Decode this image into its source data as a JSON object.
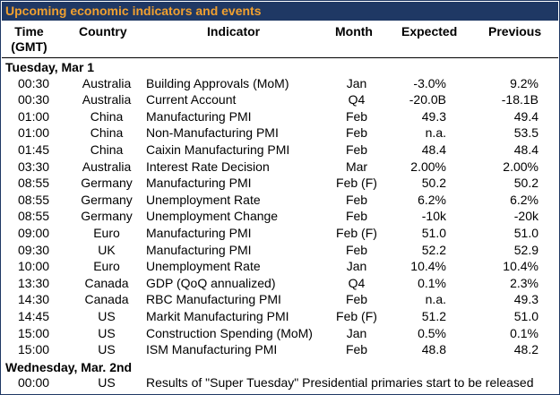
{
  "title": "Upcoming economic indicators and events",
  "headers": {
    "time_line1": "Time",
    "time_line2": "(GMT)",
    "country": "Country",
    "indicator": "Indicator",
    "month": "Month",
    "expected": "Expected",
    "previous": "Previous"
  },
  "sections": [
    {
      "label": "Tuesday, Mar 1",
      "rows": [
        {
          "time": "00:30",
          "country": "Australia",
          "indicator": "Building Approvals (MoM)",
          "month": "Jan",
          "expected": "-3.0%",
          "previous": "9.2%"
        },
        {
          "time": "00:30",
          "country": "Australia",
          "indicator": "Current Account",
          "month": "Q4",
          "expected": "-20.0B",
          "previous": "-18.1B"
        },
        {
          "time": "01:00",
          "country": "China",
          "indicator": "Manufacturing PMI",
          "month": "Feb",
          "expected": "49.3",
          "previous": "49.4"
        },
        {
          "time": "01:00",
          "country": "China",
          "indicator": "Non-Manufacturing PMI",
          "month": "Feb",
          "expected": "n.a.",
          "previous": "53.5"
        },
        {
          "time": "01:45",
          "country": "China",
          "indicator": "Caixin Manufacturing PMI",
          "month": "Feb",
          "expected": "48.4",
          "previous": "48.4"
        },
        {
          "time": "03:30",
          "country": "Australia",
          "indicator": "Interest Rate Decision",
          "month": "Mar",
          "expected": "2.00%",
          "previous": "2.00%"
        },
        {
          "time": "08:55",
          "country": "Germany",
          "indicator": "Manufacturing PMI",
          "month": "Feb (F)",
          "expected": "50.2",
          "previous": "50.2"
        },
        {
          "time": "08:55",
          "country": "Germany",
          "indicator": "Unemployment Rate",
          "month": "Feb",
          "expected": "6.2%",
          "previous": "6.2%"
        },
        {
          "time": "08:55",
          "country": "Germany",
          "indicator": "Unemployment Change",
          "month": "Feb",
          "expected": "-10k",
          "previous": "-20k"
        },
        {
          "time": "09:00",
          "country": "Euro",
          "indicator": "Manufacturing PMI",
          "month": "Feb (F)",
          "expected": "51.0",
          "previous": "51.0"
        },
        {
          "time": "09:30",
          "country": "UK",
          "indicator": "Manufacturing PMI",
          "month": "Feb",
          "expected": "52.2",
          "previous": "52.9"
        },
        {
          "time": "10:00",
          "country": "Euro",
          "indicator": "Unemployment Rate",
          "month": "Jan",
          "expected": "10.4%",
          "previous": "10.4%"
        },
        {
          "time": "13:30",
          "country": "Canada",
          "indicator": "GDP (QoQ annualized)",
          "month": "Q4",
          "expected": "0.1%",
          "previous": "2.3%"
        },
        {
          "time": "14:30",
          "country": "Canada",
          "indicator": "RBC Manufacturing PMI",
          "month": "Feb",
          "expected": "n.a.",
          "previous": "49.3"
        },
        {
          "time": "14:45",
          "country": "US",
          "indicator": "Markit Manufacturing PMI",
          "month": "Feb (F)",
          "expected": "51.2",
          "previous": "51.0"
        },
        {
          "time": "15:00",
          "country": "US",
          "indicator": "Construction Spending (MoM)",
          "month": "Jan",
          "expected": "0.5%",
          "previous": "0.1%"
        },
        {
          "time": "15:00",
          "country": "US",
          "indicator": "ISM Manufacturing PMI",
          "month": "Feb",
          "expected": "48.8",
          "previous": "48.2"
        }
      ]
    },
    {
      "label": "Wednesday, Mar. 2nd",
      "rows": [
        {
          "time": "00:00",
          "country": "US",
          "note": "Results of \"Super Tuesday\" Presidential primaries start to be released"
        }
      ]
    }
  ],
  "colors": {
    "title_bg": "#1f3864",
    "title_text": "#f0a030"
  }
}
